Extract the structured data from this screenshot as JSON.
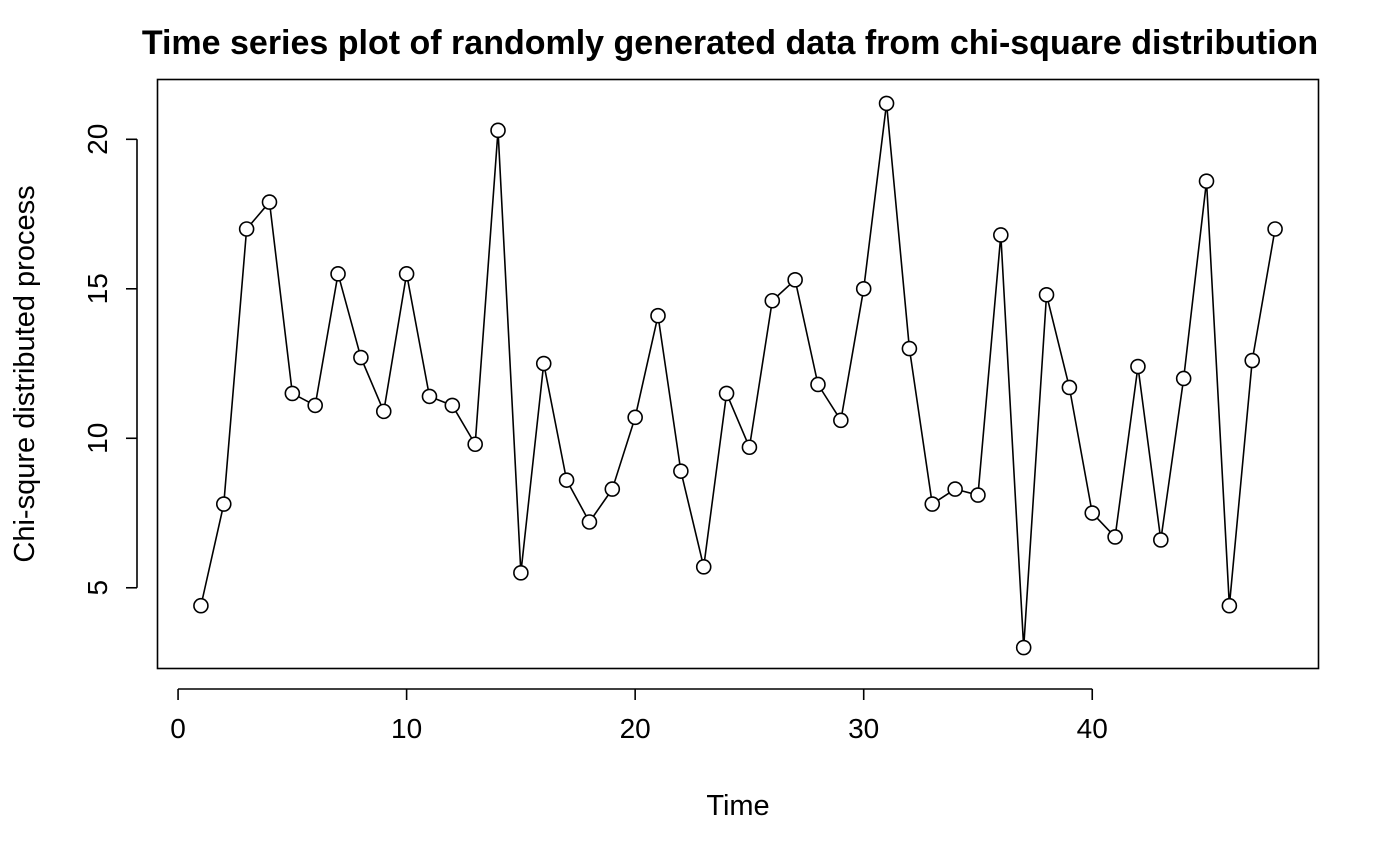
{
  "chart_data": {
    "type": "line",
    "title": "Time series plot of randomly generated data from chi-square distribution",
    "xlabel": "Time",
    "ylabel": "Chi-squre distributed process",
    "xlim": [
      -0.9,
      49.9
    ],
    "ylim": [
      2.3,
      22.0
    ],
    "xticks": [
      0,
      10,
      20,
      30,
      40
    ],
    "yticks": [
      5,
      10,
      15,
      20
    ],
    "grid": false,
    "legend": "none",
    "series": [
      {
        "x": [
          1,
          2,
          3,
          4,
          5,
          6,
          7,
          8,
          9,
          10,
          11,
          12,
          13,
          14,
          15,
          16,
          17,
          18,
          19,
          20,
          21,
          22,
          23,
          24,
          25,
          26,
          27,
          28,
          29,
          30,
          31,
          32,
          33,
          34,
          35,
          36,
          37,
          38,
          39,
          40,
          41,
          42,
          43,
          44,
          45,
          46,
          47,
          48
        ],
        "values": [
          4.4,
          7.8,
          17.0,
          17.9,
          11.5,
          11.1,
          15.5,
          12.7,
          10.9,
          15.5,
          11.4,
          11.1,
          9.8,
          20.3,
          5.5,
          12.5,
          8.6,
          7.2,
          8.3,
          10.7,
          14.1,
          8.9,
          5.7,
          11.5,
          9.7,
          14.6,
          15.3,
          11.8,
          10.6,
          15.0,
          21.2,
          13.0,
          7.8,
          8.3,
          8.1,
          16.8,
          3.0,
          14.8,
          11.7,
          7.5,
          6.7,
          12.4,
          6.6,
          12.0,
          18.6,
          4.4,
          12.6,
          17.0
        ]
      }
    ]
  }
}
